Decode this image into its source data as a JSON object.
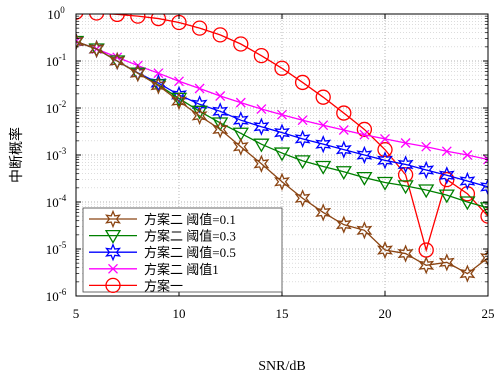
{
  "chart_data": {
    "type": "line",
    "xlabel": "SNR/dB",
    "ylabel": "中断概率",
    "xlim": [
      5,
      25
    ],
    "ylim": [
      1e-06,
      1
    ],
    "yscale": "log",
    "grid": true,
    "legend_position": "bottom-left",
    "x_ticks": [
      "5",
      "10",
      "15",
      "20",
      "25"
    ],
    "y_ticks": [
      {
        "base": "10",
        "exp": "0"
      },
      {
        "base": "10",
        "exp": "-1"
      },
      {
        "base": "10",
        "exp": "-2"
      },
      {
        "base": "10",
        "exp": "-3"
      },
      {
        "base": "10",
        "exp": "-4"
      },
      {
        "base": "10",
        "exp": "-5"
      },
      {
        "base": "10",
        "exp": "-6"
      }
    ],
    "x": [
      5,
      6,
      7,
      8,
      9,
      10,
      11,
      12,
      13,
      14,
      15,
      16,
      17,
      18,
      19,
      20,
      21,
      22,
      23,
      24,
      25
    ],
    "series": [
      {
        "name": "方案二  阈值=0.1",
        "color": "#8B4513",
        "marker": "star6",
        "values": [
          0.26,
          0.18,
          0.1,
          0.055,
          0.03,
          0.014,
          0.0068,
          0.0035,
          0.0015,
          0.00065,
          0.00027,
          0.00012,
          6e-05,
          3.3e-05,
          2.5e-05,
          9.5e-06,
          8e-06,
          4.5e-06,
          5.2e-06,
          3e-06,
          6.5e-06
        ]
      },
      {
        "name": "方案二  阈值=0.3",
        "color": "#008000",
        "marker": "triangle-down",
        "values": [
          0.26,
          0.18,
          0.1,
          0.055,
          0.031,
          0.016,
          0.0085,
          0.0048,
          0.0029,
          0.0017,
          0.0011,
          0.00075,
          0.00057,
          0.00044,
          0.00033,
          0.00026,
          0.00022,
          0.00018,
          0.00014,
          0.0001,
          7.5e-05
        ]
      },
      {
        "name": "方案二  阈值=0.5",
        "color": "#0000FF",
        "marker": "star6",
        "values": [
          0.26,
          0.18,
          0.1,
          0.056,
          0.034,
          0.019,
          0.012,
          0.0085,
          0.0055,
          0.004,
          0.003,
          0.0022,
          0.0017,
          0.0013,
          0.001,
          0.00077,
          0.00063,
          0.00048,
          0.00037,
          0.00028,
          0.00021
        ]
      },
      {
        "name": "方案二  阈值1",
        "color": "#FF00FF",
        "marker": "x",
        "values": [
          0.26,
          0.18,
          0.12,
          0.08,
          0.055,
          0.037,
          0.026,
          0.018,
          0.013,
          0.0095,
          0.0072,
          0.0055,
          0.0043,
          0.0034,
          0.0027,
          0.0022,
          0.0018,
          0.0015,
          0.0012,
          0.001,
          0.0008
        ]
      },
      {
        "name": "方案一",
        "color": "#FF0000",
        "marker": "circle",
        "values": [
          1.1,
          1.05,
          0.98,
          0.9,
          0.8,
          0.66,
          0.5,
          0.36,
          0.23,
          0.13,
          0.07,
          0.035,
          0.017,
          0.0078,
          0.0035,
          0.0013,
          0.00038,
          9.5e-06,
          0.0003,
          0.00015,
          5e-05
        ]
      }
    ]
  }
}
